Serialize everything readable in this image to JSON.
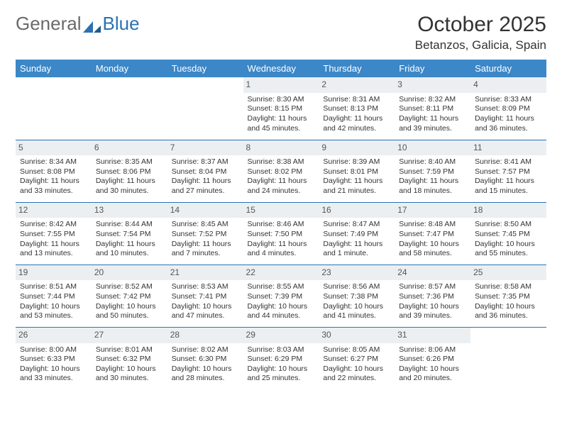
{
  "logo": {
    "text1": "General",
    "text2": "Blue"
  },
  "title": "October 2025",
  "location": "Betanzos, Galicia, Spain",
  "colors": {
    "header_bg": "#3b87c8",
    "header_text": "#ffffff",
    "daynum_bg": "#eceff1",
    "border": "#2a72b5",
    "logo_blue": "#2a72b5",
    "logo_gray": "#6a6a6a"
  },
  "daysOfWeek": [
    "Sunday",
    "Monday",
    "Tuesday",
    "Wednesday",
    "Thursday",
    "Friday",
    "Saturday"
  ],
  "weeks": [
    [
      {
        "n": "",
        "sr": "",
        "ss": "",
        "dl": ""
      },
      {
        "n": "",
        "sr": "",
        "ss": "",
        "dl": ""
      },
      {
        "n": "",
        "sr": "",
        "ss": "",
        "dl": ""
      },
      {
        "n": "1",
        "sr": "Sunrise: 8:30 AM",
        "ss": "Sunset: 8:15 PM",
        "dl": "Daylight: 11 hours and 45 minutes."
      },
      {
        "n": "2",
        "sr": "Sunrise: 8:31 AM",
        "ss": "Sunset: 8:13 PM",
        "dl": "Daylight: 11 hours and 42 minutes."
      },
      {
        "n": "3",
        "sr": "Sunrise: 8:32 AM",
        "ss": "Sunset: 8:11 PM",
        "dl": "Daylight: 11 hours and 39 minutes."
      },
      {
        "n": "4",
        "sr": "Sunrise: 8:33 AM",
        "ss": "Sunset: 8:09 PM",
        "dl": "Daylight: 11 hours and 36 minutes."
      }
    ],
    [
      {
        "n": "5",
        "sr": "Sunrise: 8:34 AM",
        "ss": "Sunset: 8:08 PM",
        "dl": "Daylight: 11 hours and 33 minutes."
      },
      {
        "n": "6",
        "sr": "Sunrise: 8:35 AM",
        "ss": "Sunset: 8:06 PM",
        "dl": "Daylight: 11 hours and 30 minutes."
      },
      {
        "n": "7",
        "sr": "Sunrise: 8:37 AM",
        "ss": "Sunset: 8:04 PM",
        "dl": "Daylight: 11 hours and 27 minutes."
      },
      {
        "n": "8",
        "sr": "Sunrise: 8:38 AM",
        "ss": "Sunset: 8:02 PM",
        "dl": "Daylight: 11 hours and 24 minutes."
      },
      {
        "n": "9",
        "sr": "Sunrise: 8:39 AM",
        "ss": "Sunset: 8:01 PM",
        "dl": "Daylight: 11 hours and 21 minutes."
      },
      {
        "n": "10",
        "sr": "Sunrise: 8:40 AM",
        "ss": "Sunset: 7:59 PM",
        "dl": "Daylight: 11 hours and 18 minutes."
      },
      {
        "n": "11",
        "sr": "Sunrise: 8:41 AM",
        "ss": "Sunset: 7:57 PM",
        "dl": "Daylight: 11 hours and 15 minutes."
      }
    ],
    [
      {
        "n": "12",
        "sr": "Sunrise: 8:42 AM",
        "ss": "Sunset: 7:55 PM",
        "dl": "Daylight: 11 hours and 13 minutes."
      },
      {
        "n": "13",
        "sr": "Sunrise: 8:44 AM",
        "ss": "Sunset: 7:54 PM",
        "dl": "Daylight: 11 hours and 10 minutes."
      },
      {
        "n": "14",
        "sr": "Sunrise: 8:45 AM",
        "ss": "Sunset: 7:52 PM",
        "dl": "Daylight: 11 hours and 7 minutes."
      },
      {
        "n": "15",
        "sr": "Sunrise: 8:46 AM",
        "ss": "Sunset: 7:50 PM",
        "dl": "Daylight: 11 hours and 4 minutes."
      },
      {
        "n": "16",
        "sr": "Sunrise: 8:47 AM",
        "ss": "Sunset: 7:49 PM",
        "dl": "Daylight: 11 hours and 1 minute."
      },
      {
        "n": "17",
        "sr": "Sunrise: 8:48 AM",
        "ss": "Sunset: 7:47 PM",
        "dl": "Daylight: 10 hours and 58 minutes."
      },
      {
        "n": "18",
        "sr": "Sunrise: 8:50 AM",
        "ss": "Sunset: 7:45 PM",
        "dl": "Daylight: 10 hours and 55 minutes."
      }
    ],
    [
      {
        "n": "19",
        "sr": "Sunrise: 8:51 AM",
        "ss": "Sunset: 7:44 PM",
        "dl": "Daylight: 10 hours and 53 minutes."
      },
      {
        "n": "20",
        "sr": "Sunrise: 8:52 AM",
        "ss": "Sunset: 7:42 PM",
        "dl": "Daylight: 10 hours and 50 minutes."
      },
      {
        "n": "21",
        "sr": "Sunrise: 8:53 AM",
        "ss": "Sunset: 7:41 PM",
        "dl": "Daylight: 10 hours and 47 minutes."
      },
      {
        "n": "22",
        "sr": "Sunrise: 8:55 AM",
        "ss": "Sunset: 7:39 PM",
        "dl": "Daylight: 10 hours and 44 minutes."
      },
      {
        "n": "23",
        "sr": "Sunrise: 8:56 AM",
        "ss": "Sunset: 7:38 PM",
        "dl": "Daylight: 10 hours and 41 minutes."
      },
      {
        "n": "24",
        "sr": "Sunrise: 8:57 AM",
        "ss": "Sunset: 7:36 PM",
        "dl": "Daylight: 10 hours and 39 minutes."
      },
      {
        "n": "25",
        "sr": "Sunrise: 8:58 AM",
        "ss": "Sunset: 7:35 PM",
        "dl": "Daylight: 10 hours and 36 minutes."
      }
    ],
    [
      {
        "n": "26",
        "sr": "Sunrise: 8:00 AM",
        "ss": "Sunset: 6:33 PM",
        "dl": "Daylight: 10 hours and 33 minutes."
      },
      {
        "n": "27",
        "sr": "Sunrise: 8:01 AM",
        "ss": "Sunset: 6:32 PM",
        "dl": "Daylight: 10 hours and 30 minutes."
      },
      {
        "n": "28",
        "sr": "Sunrise: 8:02 AM",
        "ss": "Sunset: 6:30 PM",
        "dl": "Daylight: 10 hours and 28 minutes."
      },
      {
        "n": "29",
        "sr": "Sunrise: 8:03 AM",
        "ss": "Sunset: 6:29 PM",
        "dl": "Daylight: 10 hours and 25 minutes."
      },
      {
        "n": "30",
        "sr": "Sunrise: 8:05 AM",
        "ss": "Sunset: 6:27 PM",
        "dl": "Daylight: 10 hours and 22 minutes."
      },
      {
        "n": "31",
        "sr": "Sunrise: 8:06 AM",
        "ss": "Sunset: 6:26 PM",
        "dl": "Daylight: 10 hours and 20 minutes."
      },
      {
        "n": "",
        "sr": "",
        "ss": "",
        "dl": ""
      }
    ]
  ]
}
